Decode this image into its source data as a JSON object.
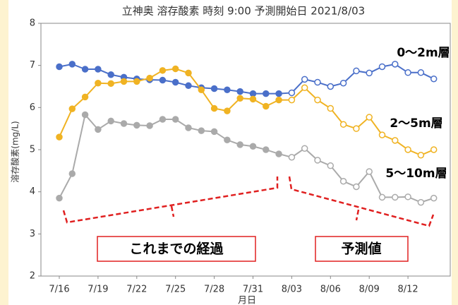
{
  "chart_data": {
    "type": "line",
    "title": "立神奥 溶存酸素 時刻 9:00 予測開始日 2021/8/03",
    "y_label": "溶存酸素(mg/L)",
    "x_label": "月日",
    "categories": [
      "7/16",
      null,
      null,
      "7/19",
      null,
      null,
      "7/22",
      null,
      null,
      "7/25",
      null,
      null,
      "7/28",
      null,
      null,
      "7/31",
      null,
      null,
      "8/03",
      null,
      null,
      "8/06",
      null,
      null,
      "8/09",
      null,
      null,
      "8/12",
      null,
      null
    ],
    "series": [
      {
        "name": "0～2m層",
        "color": "#4a6fc9",
        "values": [
          6.97,
          7.03,
          6.91,
          6.91,
          6.78,
          6.72,
          6.68,
          6.66,
          6.65,
          6.6,
          6.52,
          6.47,
          6.45,
          6.42,
          6.38,
          6.33,
          6.33,
          6.33,
          6.35,
          6.67,
          6.6,
          6.5,
          6.58,
          6.87,
          6.82,
          6.97,
          7.03,
          6.83,
          6.83,
          6.68
        ]
      },
      {
        "name": "2～5m層",
        "color": "#f0b323",
        "values": [
          5.3,
          5.97,
          6.25,
          6.58,
          6.57,
          6.62,
          6.62,
          6.7,
          6.88,
          6.92,
          6.82,
          6.42,
          5.98,
          5.92,
          6.22,
          6.2,
          6.03,
          6.18,
          6.18,
          6.47,
          6.18,
          5.98,
          5.6,
          5.5,
          5.77,
          5.35,
          5.22,
          5.0,
          4.87,
          5.0
        ]
      },
      {
        "name": "5～10m層",
        "color": "#aaaaaa",
        "values": [
          3.85,
          4.43,
          5.83,
          5.48,
          5.68,
          5.62,
          5.58,
          5.57,
          5.72,
          5.72,
          5.52,
          5.45,
          5.43,
          5.23,
          5.12,
          5.08,
          5.0,
          4.9,
          4.82,
          5.03,
          4.75,
          4.62,
          4.25,
          4.12,
          4.48,
          3.87,
          3.87,
          3.88,
          3.75,
          3.85
        ]
      }
    ],
    "annotations": [
      "これまでの経過",
      "予測値"
    ],
    "hollow_markers_from": 18,
    "ylim": [
      2,
      8
    ],
    "yticks": [
      2,
      3,
      4,
      5,
      6,
      7,
      8
    ],
    "grid": false
  }
}
